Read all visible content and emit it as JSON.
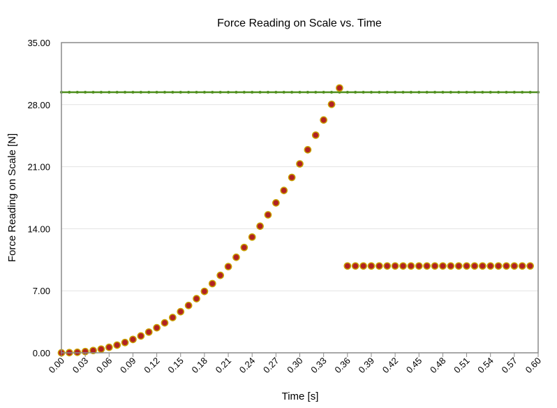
{
  "chart_data": {
    "type": "scatter",
    "title": "Force Reading on Scale vs. Time",
    "xlabel": "Time [s]",
    "ylabel": "Force Reading on Scale [N]",
    "xlim": [
      0,
      0.6
    ],
    "ylim": [
      0,
      35
    ],
    "x_ticks": [
      "0.00",
      "0.03",
      "0.06",
      "0.09",
      "0.12",
      "0.15",
      "0.18",
      "0.21",
      "0.24",
      "0.27",
      "0.30",
      "0.33",
      "0.36",
      "0.39",
      "0.42",
      "0.45",
      "0.48",
      "0.51",
      "0.54",
      "0.57",
      "0.60"
    ],
    "y_ticks": [
      "0.00",
      "7.00",
      "14.00",
      "21.00",
      "28.00",
      "35.00"
    ],
    "grid": "horizontal",
    "legend": "none",
    "series": [
      {
        "marker": "circle",
        "color": "#b22222",
        "edge_color": "#c8a000",
        "x": [
          0.0,
          0.01,
          0.02,
          0.03,
          0.04,
          0.05,
          0.06,
          0.07,
          0.08,
          0.09,
          0.1,
          0.11,
          0.12,
          0.13,
          0.14,
          0.15,
          0.16,
          0.17,
          0.18,
          0.19,
          0.2,
          0.21,
          0.22,
          0.23,
          0.24,
          0.25,
          0.26,
          0.27,
          0.28,
          0.29,
          0.3,
          0.31,
          0.32,
          0.33,
          0.34,
          0.35,
          0.36,
          0.37,
          0.38,
          0.39,
          0.4,
          0.41,
          0.42,
          0.43,
          0.44,
          0.45,
          0.46,
          0.47,
          0.48,
          0.49,
          0.5,
          0.51,
          0.52,
          0.53,
          0.54,
          0.55,
          0.56,
          0.57,
          0.58,
          0.59
        ],
        "y": [
          0.0,
          0.02,
          0.06,
          0.14,
          0.26,
          0.42,
          0.62,
          0.87,
          1.16,
          1.51,
          1.9,
          2.34,
          2.83,
          3.38,
          3.98,
          4.64,
          5.34,
          6.11,
          6.93,
          7.81,
          8.74,
          9.73,
          10.78,
          11.89,
          13.06,
          14.29,
          15.57,
          16.92,
          18.32,
          19.79,
          21.32,
          22.91,
          24.56,
          26.27,
          28.04,
          29.88,
          9.8,
          9.8,
          9.8,
          9.8,
          9.8,
          9.8,
          9.8,
          9.8,
          9.8,
          9.8,
          9.8,
          9.8,
          9.8,
          9.8,
          9.8,
          9.8,
          9.8,
          9.8,
          9.8,
          9.8,
          9.8,
          9.8,
          9.8,
          9.8
        ]
      },
      {
        "marker": "line",
        "color": "#4f8f1e",
        "y_constant": 29.4,
        "x": [
          0.0,
          0.01,
          0.02,
          0.03,
          0.04,
          0.05,
          0.06,
          0.07,
          0.08,
          0.09,
          0.1,
          0.11,
          0.12,
          0.13,
          0.14,
          0.15,
          0.16,
          0.17,
          0.18,
          0.19,
          0.2,
          0.21,
          0.22,
          0.23,
          0.24,
          0.25,
          0.26,
          0.27,
          0.28,
          0.29,
          0.3,
          0.31,
          0.32,
          0.33,
          0.34,
          0.35,
          0.36,
          0.37,
          0.38,
          0.39,
          0.4,
          0.41,
          0.42,
          0.43,
          0.44,
          0.45,
          0.46,
          0.47,
          0.48,
          0.49,
          0.5,
          0.51,
          0.52,
          0.53,
          0.54,
          0.55,
          0.56,
          0.57,
          0.58,
          0.59,
          0.6
        ]
      }
    ]
  }
}
